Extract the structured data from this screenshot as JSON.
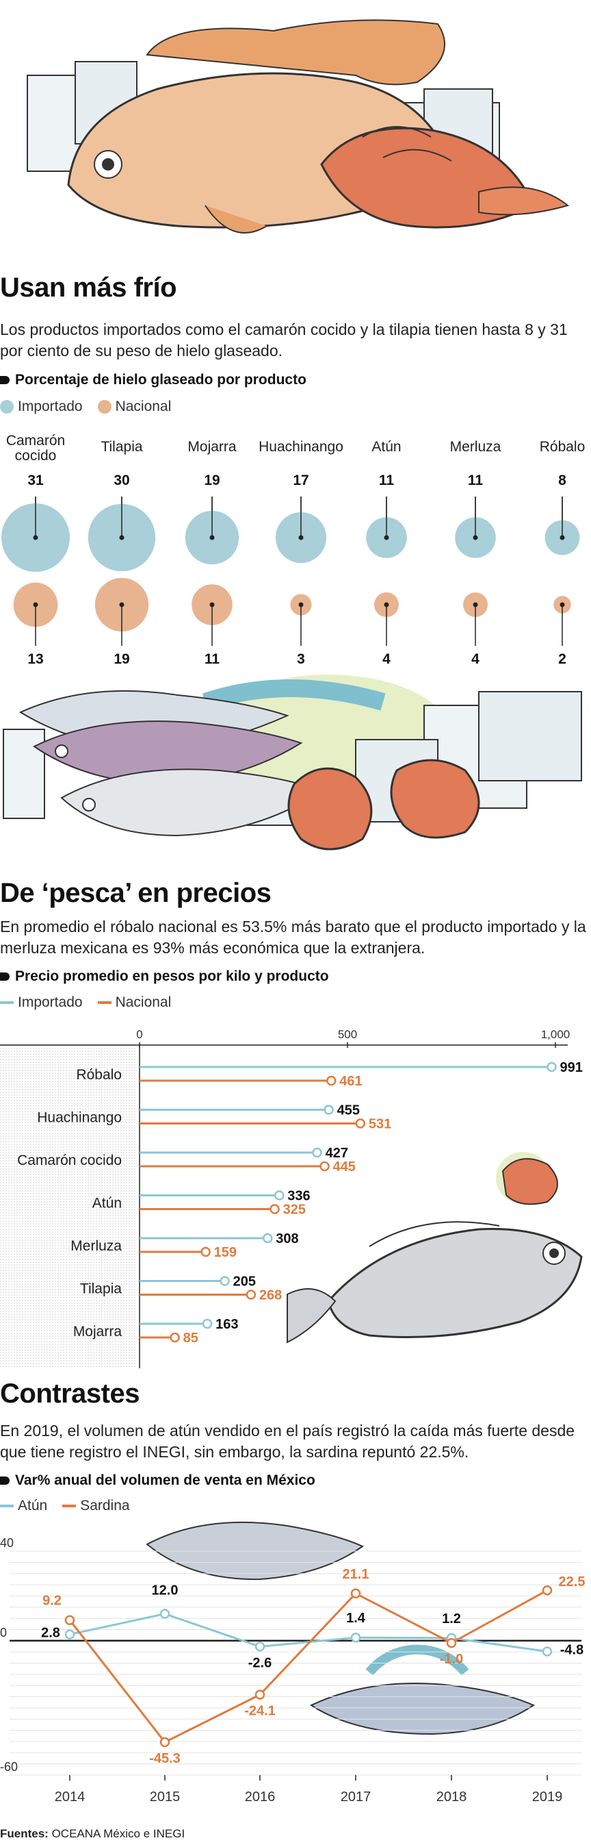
{
  "section1": {
    "title": "Usan más frío",
    "lead": "Los productos importados como el camarón cocido y la tilapia  tienen hasta 8 y 31 por ciento de su peso de hielo glaseado.",
    "subtitle": "Porcentaje de hielo glaseado por producto",
    "legend": [
      "Importado",
      "Nacional"
    ]
  },
  "section2": {
    "title": "De ‘pesca’ en precios",
    "lead": "En promedio el róbalo nacional es 53.5% más barato que el producto importado y la  merluza mexicana es 93% más económica que la extranjera.",
    "subtitle": "Precio promedio en pesos por kilo y producto",
    "legend": [
      "Importado",
      "Nacional"
    ]
  },
  "section3": {
    "title": "Contrastes",
    "lead": "En 2019, el volumen de atún vendido en el país registró la caída más fuerte desde que tiene registro el INEGI, sin embargo, la sardina repuntó 22.5%.",
    "subtitle": "Var% anual del volumen de venta en México",
    "legend": [
      "Atún",
      "Sardina"
    ]
  },
  "source": {
    "label": "Fuentes:",
    "text": " OCEANA México e INEGI"
  },
  "colors": {
    "importado": "#a9cfd9",
    "nacional": "#e8b38f",
    "atun": "#7fbfce",
    "sardina": "#e0772f",
    "line_blue": "#8cc6d6",
    "line_orange": "#e07b3c"
  },
  "chart_data": [
    {
      "type": "bubble",
      "title": "Porcentaje de hielo glaseado por producto",
      "categories": [
        "Camarón cocido",
        "Tilapia",
        "Mojarra",
        "Huachinango",
        "Atún",
        "Merluza",
        "Róbalo"
      ],
      "series": [
        {
          "name": "Importado",
          "values": [
            31,
            30,
            19,
            17,
            11,
            11,
            8
          ]
        },
        {
          "name": "Nacional",
          "values": [
            13,
            19,
            11,
            3,
            4,
            4,
            2
          ]
        }
      ]
    },
    {
      "type": "bar",
      "title": "Precio promedio en pesos por kilo y producto",
      "categories": [
        "Róbalo",
        "Huachinango",
        "Camarón cocido",
        "Atún",
        "Merluza",
        "Tilapia",
        "Mojarra"
      ],
      "series": [
        {
          "name": "Importado",
          "values": [
            991,
            455,
            427,
            336,
            308,
            205,
            163
          ]
        },
        {
          "name": "Nacional",
          "values": [
            461,
            531,
            445,
            325,
            159,
            268,
            85
          ]
        }
      ],
      "xlim": [
        0,
        1000
      ],
      "ticks": [
        0,
        500,
        1000
      ],
      "tick_labels": [
        "0",
        "500",
        "1,000"
      ]
    },
    {
      "type": "line",
      "title": "Var% anual del volumen de venta en México",
      "x": [
        2014,
        2015,
        2016,
        2017,
        2018,
        2019
      ],
      "series": [
        {
          "name": "Atún",
          "values": [
            2.8,
            12.0,
            -2.6,
            1.4,
            1.2,
            -4.8
          ],
          "labels": [
            "2.8",
            "12.0",
            "-2.6",
            "1.4",
            "1.2",
            "-4.8"
          ]
        },
        {
          "name": "Sardina",
          "values": [
            9.2,
            -45.3,
            -24.1,
            21.1,
            -1.0,
            22.5
          ],
          "labels": [
            "9.2",
            "-45.3",
            "-24.1",
            "21.1",
            "-1.0",
            "22.5"
          ]
        }
      ],
      "ylim": [
        -60,
        40
      ],
      "yticks": [
        40,
        0,
        -60
      ]
    }
  ]
}
